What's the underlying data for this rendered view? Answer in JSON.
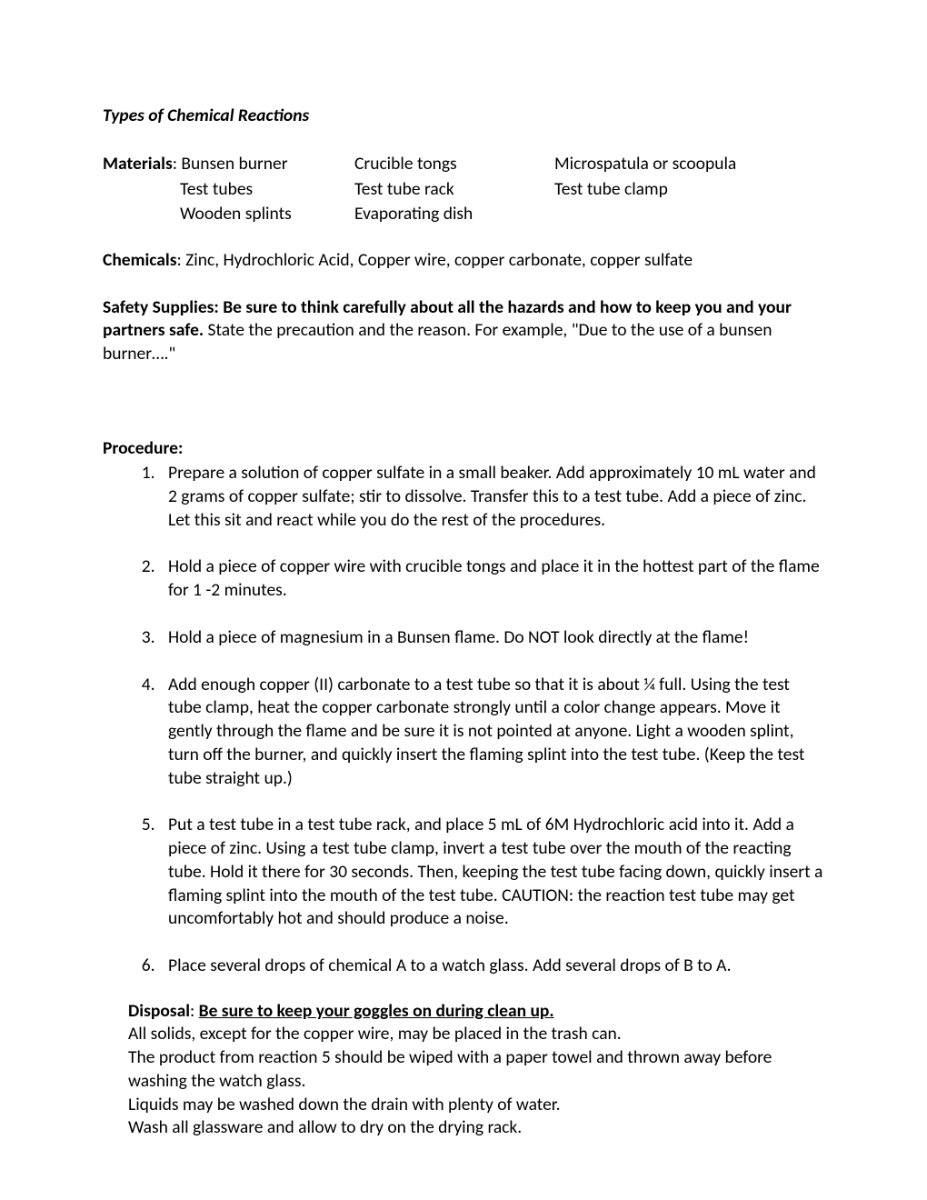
{
  "title": "Types of Chemical Reactions",
  "materials": {
    "label": "Materials",
    "rows": [
      {
        "col1": "Bunsen burner",
        "col2": "Crucible tongs",
        "col3": "Microspatula or scoopula"
      },
      {
        "col1": "Test tubes",
        "col2": "Test tube rack",
        "col3": "Test tube clamp"
      },
      {
        "col1": "Wooden splints",
        "col2": "Evaporating dish",
        "col3": ""
      }
    ]
  },
  "chemicals": {
    "label": "Chemicals",
    "text": ":  Zinc, Hydrochloric Acid, Copper wire, copper carbonate, copper sulfate"
  },
  "safety": {
    "bold": "Safety Supplies:  Be sure to think carefully about all the hazards and how to keep you and your partners safe.",
    "rest": " State the precaution and the reason. For example, \"Due to the use of a bunsen burner….\""
  },
  "procedure": {
    "label": "Procedure",
    "items": [
      "Prepare a solution of copper sulfate in a small beaker.  Add approximately 10 mL water and 2 grams of copper sulfate;  stir to dissolve.  Transfer this to a test tube.  Add a piece of zinc. Let this sit and react while you do the rest of the procedures.",
      "Hold a piece of copper wire with crucible tongs and place it in the hottest part of the flame for 1 -2 minutes.",
      "Hold a piece of magnesium in a Bunsen flame. Do NOT look directly at the flame!",
      "Add enough copper (II) carbonate to a test tube so that it is about ¼ full. Using the test tube clamp, heat the copper carbonate strongly until a color change appears. Move it gently through the flame and be sure it is not pointed at anyone. Light a wooden splint, turn off the burner, and quickly insert the flaming splint into the test tube.  (Keep the test tube straight up.)",
      "Put a test tube in a test tube rack, and place 5 mL of 6M Hydrochloric acid into it. Add a piece of zinc.  Using a test tube clamp, invert a test tube over the mouth of the reacting tube.  Hold it there for 30 seconds.  Then, keeping the test tube facing down, quickly insert a flaming splint into the mouth of the test tube. CAUTION: the reaction test tube may get uncomfortably hot and should produce a noise.",
      "Place several drops of chemical A to a watch glass. Add several drops of B to A."
    ]
  },
  "disposal": {
    "label": "Disposal",
    "underlined": "Be sure to keep your goggles on during clean up.",
    "lines": [
      "All solids, except for the copper wire, may be placed in the trash can.",
      "The product from reaction 5 should be wiped with a paper towel and thrown away before washing the watch glass.",
      "Liquids may be washed down the drain with plenty of water.",
      "Wash all glassware and allow to dry on the drying rack."
    ]
  }
}
